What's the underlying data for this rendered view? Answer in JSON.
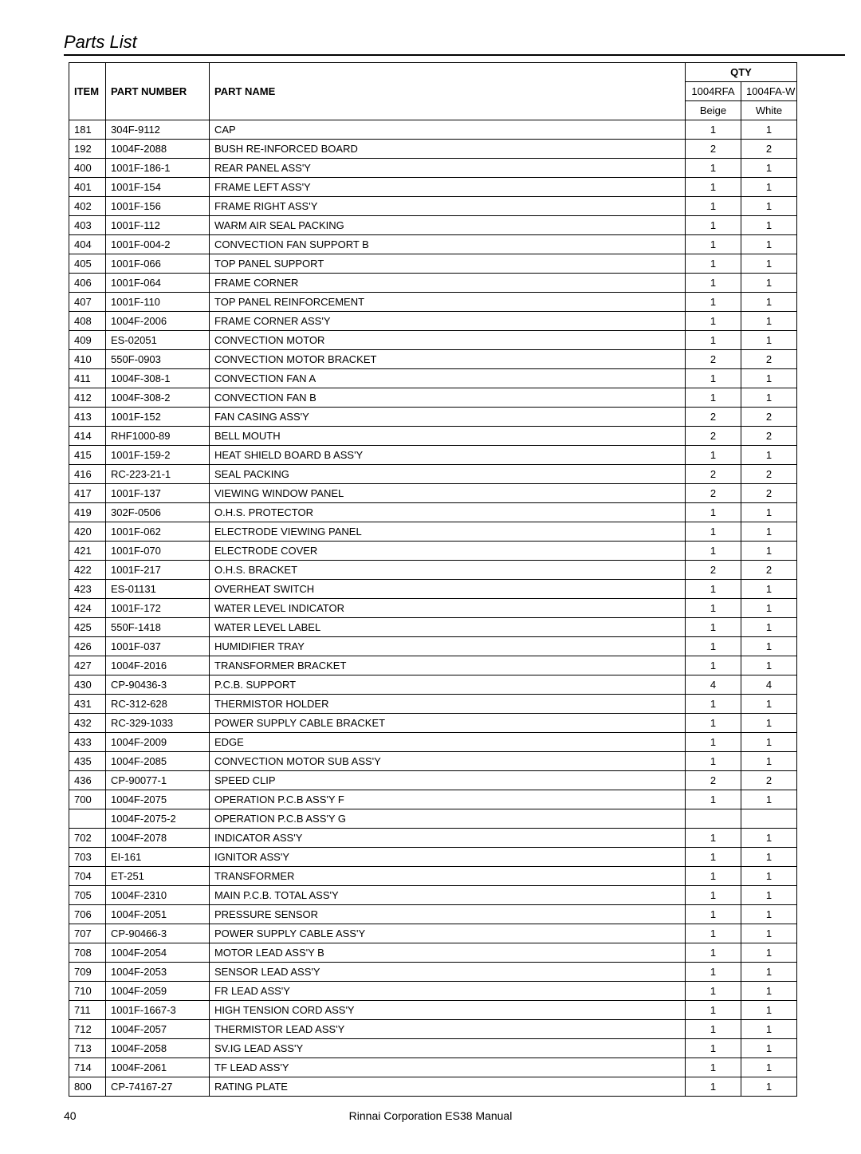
{
  "title": "Parts List",
  "header": {
    "item": "ITEM",
    "part_number": "PART NUMBER",
    "part_name": "PART NAME",
    "qty": "QTY",
    "model_a": "1004RFA",
    "model_b": "1004FA-W",
    "color_a": "Beige",
    "color_b": "White"
  },
  "rows": [
    {
      "item": "181",
      "pn": "304F-9112",
      "name": "CAP",
      "a": "1",
      "b": "1"
    },
    {
      "item": "192",
      "pn": "1004F-2088",
      "name": "BUSH RE-INFORCED BOARD",
      "a": "2",
      "b": "2"
    },
    {
      "item": "400",
      "pn": "1001F-186-1",
      "name": "REAR PANEL ASS'Y",
      "a": "1",
      "b": "1"
    },
    {
      "item": "401",
      "pn": "1001F-154",
      "name": "FRAME LEFT ASS'Y",
      "a": "1",
      "b": "1"
    },
    {
      "item": "402",
      "pn": "1001F-156",
      "name": "FRAME RIGHT ASS'Y",
      "a": "1",
      "b": "1"
    },
    {
      "item": "403",
      "pn": "1001F-112",
      "name": "WARM AIR SEAL PACKING",
      "a": "1",
      "b": "1"
    },
    {
      "item": "404",
      "pn": "1001F-004-2",
      "name": "CONVECTION FAN SUPPORT B",
      "a": "1",
      "b": "1"
    },
    {
      "item": "405",
      "pn": "1001F-066",
      "name": "TOP PANEL SUPPORT",
      "a": "1",
      "b": "1"
    },
    {
      "item": "406",
      "pn": "1001F-064",
      "name": "FRAME CORNER",
      "a": "1",
      "b": "1"
    },
    {
      "item": "407",
      "pn": "1001F-110",
      "name": "TOP PANEL REINFORCEMENT",
      "a": "1",
      "b": "1"
    },
    {
      "item": "408",
      "pn": "1004F-2006",
      "name": "FRAME CORNER ASS'Y",
      "a": "1",
      "b": "1"
    },
    {
      "item": "409",
      "pn": "ES-02051",
      "name": "CONVECTION MOTOR",
      "a": "1",
      "b": "1"
    },
    {
      "item": "410",
      "pn": "550F-0903",
      "name": "CONVECTION MOTOR BRACKET",
      "a": "2",
      "b": "2"
    },
    {
      "item": "411",
      "pn": "1004F-308-1",
      "name": "CONVECTION FAN A",
      "a": "1",
      "b": "1"
    },
    {
      "item": "412",
      "pn": "1004F-308-2",
      "name": "CONVECTION FAN B",
      "a": "1",
      "b": "1"
    },
    {
      "item": "413",
      "pn": "1001F-152",
      "name": "FAN CASING ASS'Y",
      "a": "2",
      "b": "2"
    },
    {
      "item": "414",
      "pn": "RHF1000-89",
      "name": "BELL MOUTH",
      "a": "2",
      "b": "2"
    },
    {
      "item": "415",
      "pn": "1001F-159-2",
      "name": "HEAT SHIELD BOARD B ASS'Y",
      "a": "1",
      "b": "1"
    },
    {
      "item": "416",
      "pn": "RC-223-21-1",
      "name": "SEAL PACKING",
      "a": "2",
      "b": "2"
    },
    {
      "item": "417",
      "pn": "1001F-137",
      "name": "VIEWING WINDOW PANEL",
      "a": "2",
      "b": "2"
    },
    {
      "item": "419",
      "pn": "302F-0506",
      "name": "O.H.S. PROTECTOR",
      "a": "1",
      "b": "1"
    },
    {
      "item": "420",
      "pn": "1001F-062",
      "name": "ELECTRODE VIEWING PANEL",
      "a": "1",
      "b": "1"
    },
    {
      "item": "421",
      "pn": "1001F-070",
      "name": "ELECTRODE COVER",
      "a": "1",
      "b": "1"
    },
    {
      "item": "422",
      "pn": "1001F-217",
      "name": "O.H.S. BRACKET",
      "a": "2",
      "b": "2"
    },
    {
      "item": "423",
      "pn": "ES-01131",
      "name": "OVERHEAT SWITCH",
      "a": "1",
      "b": "1"
    },
    {
      "item": "424",
      "pn": "1001F-172",
      "name": "WATER LEVEL INDICATOR",
      "a": "1",
      "b": "1"
    },
    {
      "item": "425",
      "pn": "550F-1418",
      "name": "WATER LEVEL LABEL",
      "a": "1",
      "b": "1"
    },
    {
      "item": "426",
      "pn": "1001F-037",
      "name": "HUMIDIFIER TRAY",
      "a": "1",
      "b": "1"
    },
    {
      "item": "427",
      "pn": "1004F-2016",
      "name": "TRANSFORMER BRACKET",
      "a": "1",
      "b": "1"
    },
    {
      "item": "430",
      "pn": "CP-90436-3",
      "name": "P.C.B. SUPPORT",
      "a": "4",
      "b": "4"
    },
    {
      "item": "431",
      "pn": "RC-312-628",
      "name": "THERMISTOR HOLDER",
      "a": "1",
      "b": "1"
    },
    {
      "item": "432",
      "pn": "RC-329-1033",
      "name": "POWER SUPPLY CABLE BRACKET",
      "a": "1",
      "b": "1"
    },
    {
      "item": "433",
      "pn": "1004F-2009",
      "name": "EDGE",
      "a": "1",
      "b": "1"
    },
    {
      "item": "435",
      "pn": "1004F-2085",
      "name": "CONVECTION MOTOR SUB ASS'Y",
      "a": "1",
      "b": "1"
    },
    {
      "item": "436",
      "pn": "CP-90077-1",
      "name": "SPEED CLIP",
      "a": "2",
      "b": "2"
    },
    {
      "item": "700",
      "pn": "1004F-2075",
      "name": "OPERATION P.C.B ASS'Y F",
      "a": "1",
      "b": "1"
    },
    {
      "item": "",
      "pn": "1004F-2075-2",
      "name": "OPERATION P.C.B ASS'Y G",
      "a": "",
      "b": ""
    },
    {
      "item": "702",
      "pn": "1004F-2078",
      "name": "INDICATOR ASS'Y",
      "a": "1",
      "b": "1"
    },
    {
      "item": "703",
      "pn": "EI-161",
      "name": "IGNITOR ASS'Y",
      "a": "1",
      "b": "1"
    },
    {
      "item": "704",
      "pn": "ET-251",
      "name": "TRANSFORMER",
      "a": "1",
      "b": "1"
    },
    {
      "item": "705",
      "pn": "1004F-2310",
      "name": "MAIN P.C.B. TOTAL ASS'Y",
      "a": "1",
      "b": "1"
    },
    {
      "item": "706",
      "pn": "1004F-2051",
      "name": "PRESSURE SENSOR",
      "a": "1",
      "b": "1"
    },
    {
      "item": "707",
      "pn": "CP-90466-3",
      "name": "POWER SUPPLY CABLE ASS'Y",
      "a": "1",
      "b": "1"
    },
    {
      "item": "708",
      "pn": "1004F-2054",
      "name": "MOTOR LEAD ASS'Y B",
      "a": "1",
      "b": "1"
    },
    {
      "item": "709",
      "pn": "1004F-2053",
      "name": "SENSOR LEAD ASS'Y",
      "a": "1",
      "b": "1"
    },
    {
      "item": "710",
      "pn": "1004F-2059",
      "name": "FR LEAD ASS'Y",
      "a": "1",
      "b": "1"
    },
    {
      "item": "711",
      "pn": "1001F-1667-3",
      "name": "HIGH TENSION CORD ASS'Y",
      "a": "1",
      "b": "1"
    },
    {
      "item": "712",
      "pn": "1004F-2057",
      "name": "THERMISTOR LEAD ASS'Y",
      "a": "1",
      "b": "1"
    },
    {
      "item": "713",
      "pn": "1004F-2058",
      "name": "SV.IG LEAD ASS'Y",
      "a": "1",
      "b": "1"
    },
    {
      "item": "714",
      "pn": "1004F-2061",
      "name": "TF LEAD ASS'Y",
      "a": "1",
      "b": "1"
    },
    {
      "item": "800",
      "pn": "CP-74167-27",
      "name": "RATING PLATE",
      "a": "1",
      "b": "1"
    }
  ],
  "footer": {
    "page": "40",
    "text": "Rinnai Corporation ES38 Manual"
  }
}
